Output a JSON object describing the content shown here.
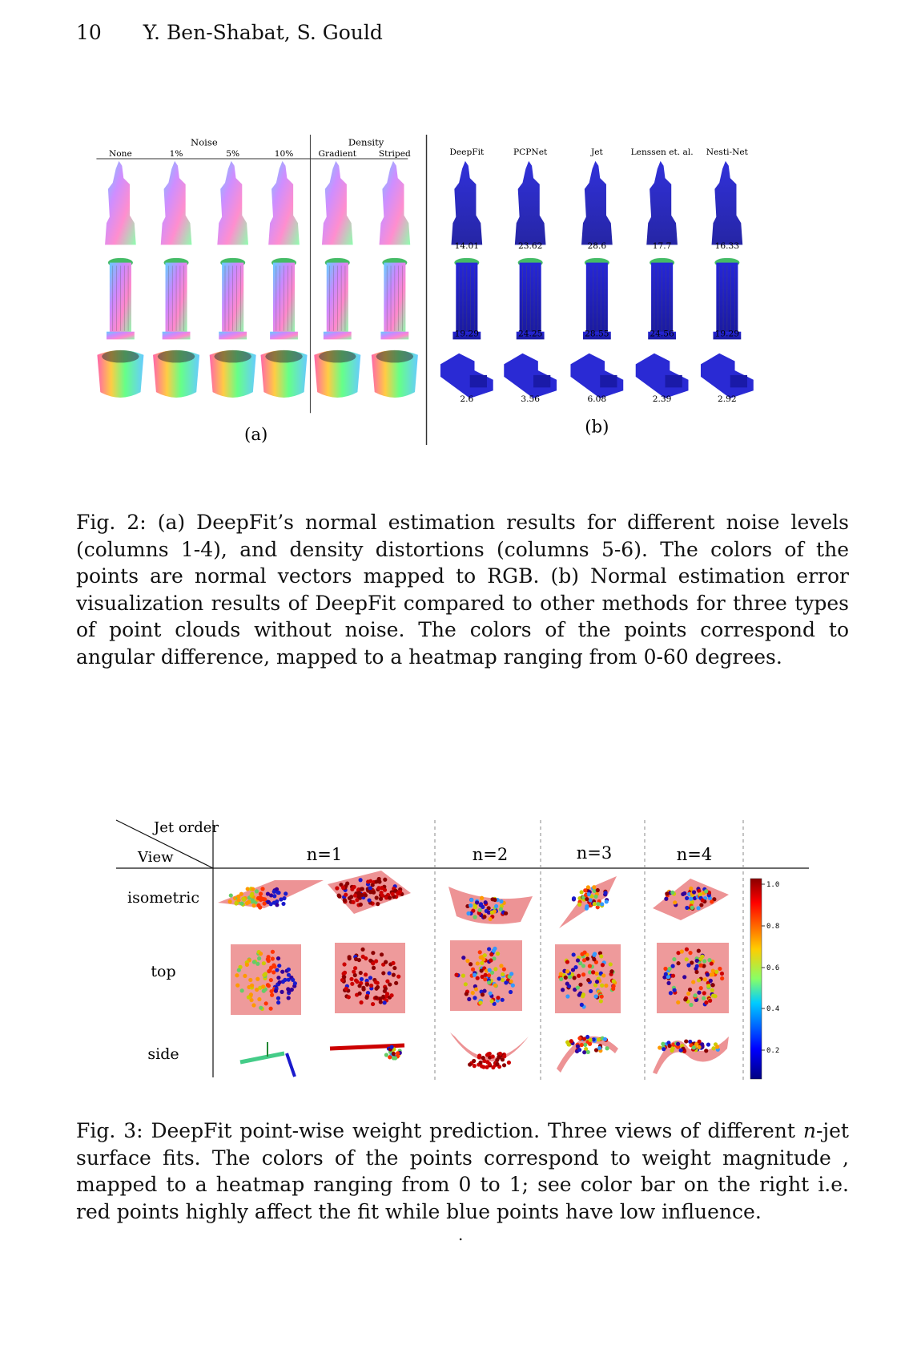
{
  "header": {
    "page_number": "10",
    "authors": "Y. Ben-Shabat, S. Gould"
  },
  "fig2": {
    "panel_a": {
      "group_noise": "Noise",
      "group_density": "Density",
      "columns": [
        "None",
        "1%",
        "5%",
        "10%",
        "Gradient",
        "Striped"
      ],
      "label": "(a)"
    },
    "panel_b": {
      "methods": [
        "DeepFit",
        "PCPNet",
        "Jet",
        "Lenssen et. al.",
        "Nesti-Net"
      ],
      "rows": [
        [
          "14.01",
          "23.62",
          "28.6",
          "17.7",
          "16.33"
        ],
        [
          "19.29",
          "24.25",
          "28.55",
          "24.56",
          "19.29"
        ],
        [
          "2.6",
          "3.56",
          "6.08",
          "2.39",
          "2.92"
        ]
      ],
      "label": "(b)"
    },
    "caption_label": "Fig. 2:",
    "caption_text": "(a) DeepFit’s normal estimation results for different noise levels (columns 1-4), and density distortions (columns 5-6). The colors of the points are normal vectors mapped to RGB. (b) Normal estimation error visualization results of DeepFit compared to other methods for three types of point clouds without noise. The colors of the points correspond to angular difference, mapped to a heatmap ranging from 0-60 degrees."
  },
  "fig3": {
    "header_top": "Jet order",
    "header_bottom": "View",
    "columns": [
      "n=1",
      "n=2",
      "n=3",
      "n=4"
    ],
    "rows": [
      "isometric",
      "top",
      "side"
    ],
    "colorbar_ticks": [
      "1.0",
      "0.8",
      "0.6",
      "0.4",
      "0.2"
    ],
    "caption_label": "Fig. 3:",
    "caption_text_1": "DeepFit point-wise weight prediction. Three views of different ",
    "caption_italic": "n",
    "caption_text_2": "-jet surface fits. The colors of the points correspond to weight magnitude , mapped to a heatmap ranging from 0 to 1; see color bar on the right i.e. red points highly affect the fit while blue points have low influence."
  },
  "footer": {
    "dot": "."
  },
  "colors": {
    "surface_red": "#e8787a",
    "deep_blue": "#1e1fc8",
    "rainbow_start": "#ff66cc"
  },
  "icons": [
    "statue-pointcloud-icon",
    "column-pointcloud-icon",
    "cup-pointcloud-icon",
    "box-pointcloud-icon",
    "surface-fit-icon"
  ]
}
